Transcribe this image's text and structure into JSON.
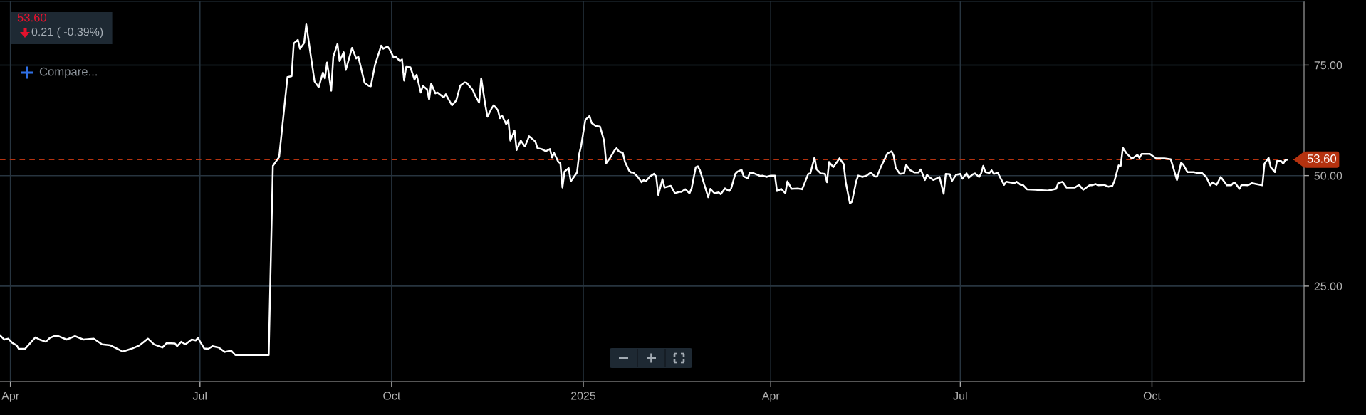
{
  "chart_data": {
    "type": "line",
    "color": "#ffffff",
    "grid": true,
    "xlim": [
      "2024-03-27",
      "2025-12-13"
    ],
    "ylim": [
      3.4,
      89.4
    ],
    "xticks": [
      {
        "value": "2024-04-01",
        "label": "Apr"
      },
      {
        "value": "2024-07-01",
        "label": "Jul"
      },
      {
        "value": "2024-10-01",
        "label": "Oct"
      },
      {
        "value": "2025-01-01",
        "label": "2025"
      },
      {
        "value": "2025-04-01",
        "label": "Apr"
      },
      {
        "value": "2025-07-01",
        "label": "Jul"
      },
      {
        "value": "2025-10-01",
        "label": "Oct"
      }
    ],
    "yticks": [
      {
        "value": 25,
        "label": "25.00"
      },
      {
        "value": 50,
        "label": "50.00"
      },
      {
        "value": 75,
        "label": "75.00"
      }
    ],
    "ref_lines": [
      {
        "axis": "y",
        "value": 53.6,
        "label": "53.60",
        "color": "#b5320f",
        "line_style": "dashed"
      }
    ],
    "annotations": [
      "53.60",
      "0.21 ( -0.39%)",
      "Compare..."
    ],
    "x": [
      "2024-03-27",
      "2024-03-29",
      "2024-03-31",
      "2024-04-02",
      "2024-04-04",
      "2024-04-05",
      "2024-04-08",
      "2024-04-13",
      "2024-04-15",
      "2024-04-18",
      "2024-04-20",
      "2024-04-22",
      "2024-04-24",
      "2024-04-28",
      "2024-05-02",
      "2024-05-06",
      "2024-05-11",
      "2024-05-15",
      "2024-05-19",
      "2024-05-25",
      "2024-05-29",
      "2024-06-02",
      "2024-06-06",
      "2024-06-09",
      "2024-06-13",
      "2024-06-15",
      "2024-06-19",
      "2024-06-20",
      "2024-06-22",
      "2024-06-24",
      "2024-06-27",
      "2024-06-29",
      "2024-06-30",
      "2024-07-03",
      "2024-07-05",
      "2024-07-07",
      "2024-07-10",
      "2024-07-13",
      "2024-07-16",
      "2024-07-18",
      "2024-08-03",
      "2024-08-05",
      "2024-08-08",
      "2024-08-12",
      "2024-08-14",
      "2024-08-15",
      "2024-08-17",
      "2024-08-18",
      "2024-08-20",
      "2024-08-21",
      "2024-08-25",
      "2024-08-27",
      "2024-08-29",
      "2024-08-30",
      "2024-08-31",
      "2024-09-02",
      "2024-09-03",
      "2024-09-05",
      "2024-09-06",
      "2024-09-08",
      "2024-09-09",
      "2024-09-12",
      "2024-09-14",
      "2024-09-15",
      "2024-09-18",
      "2024-09-20",
      "2024-09-21",
      "2024-09-23",
      "2024-09-26",
      "2024-09-27",
      "2024-09-29",
      "2024-09-30",
      "2024-10-02",
      "2024-10-03",
      "2024-10-05",
      "2024-10-06",
      "2024-10-07",
      "2024-10-08",
      "2024-10-10",
      "2024-10-12",
      "2024-10-13",
      "2024-10-15",
      "2024-10-16",
      "2024-10-18",
      "2024-10-19",
      "2024-10-20",
      "2024-10-22",
      "2024-10-23",
      "2024-10-26",
      "2024-10-27",
      "2024-10-29",
      "2024-10-30",
      "2024-11-01",
      "2024-11-03",
      "2024-11-05",
      "2024-11-06",
      "2024-11-08",
      "2024-11-09",
      "2024-11-10",
      "2024-11-12",
      "2024-11-13",
      "2024-11-15",
      "2024-11-16",
      "2024-11-18",
      "2024-11-19",
      "2024-11-21",
      "2024-11-22",
      "2024-11-23",
      "2024-11-25",
      "2024-11-26",
      "2024-11-27",
      "2024-11-29",
      "2024-11-30",
      "2024-12-02",
      "2024-12-04",
      "2024-12-06",
      "2024-12-09",
      "2024-12-10",
      "2024-12-12",
      "2024-12-14",
      "2024-12-16",
      "2024-12-17",
      "2024-12-18",
      "2024-12-20",
      "2024-12-21",
      "2024-12-22",
      "2024-12-23",
      "2024-12-25",
      "2024-12-26",
      "2024-12-29",
      "2024-12-30",
      "2024-12-31",
      "2025-01-02",
      "2025-01-04",
      "2025-01-05",
      "2025-01-07",
      "2025-01-09",
      "2025-01-11",
      "2025-01-12",
      "2025-01-14",
      "2025-01-16",
      "2025-01-17",
      "2025-01-18",
      "2025-01-20",
      "2025-01-21",
      "2025-01-23",
      "2025-01-24",
      "2025-01-25",
      "2025-01-27",
      "2025-01-29",
      "2025-01-30",
      "2025-01-31",
      "2025-02-02",
      "2025-02-04",
      "2025-02-05",
      "2025-02-06",
      "2025-02-08",
      "2025-02-09",
      "2025-02-12",
      "2025-02-14",
      "2025-02-16",
      "2025-02-17",
      "2025-02-19",
      "2025-02-21",
      "2025-02-22",
      "2025-02-24",
      "2025-02-25",
      "2025-02-26",
      "2025-03-02",
      "2025-03-03",
      "2025-03-05",
      "2025-03-07",
      "2025-03-08",
      "2025-03-10",
      "2025-03-12",
      "2025-03-13",
      "2025-03-15",
      "2025-03-16",
      "2025-03-18",
      "2025-03-19",
      "2025-03-21",
      "2025-03-22",
      "2025-03-24",
      "2025-03-27",
      "2025-03-28",
      "2025-03-30",
      "2025-04-01",
      "2025-04-03",
      "2025-04-04",
      "2025-04-06",
      "2025-04-08",
      "2025-04-09",
      "2025-04-11",
      "2025-04-14",
      "2025-04-16",
      "2025-04-17",
      "2025-04-19",
      "2025-04-20",
      "2025-04-22",
      "2025-04-23",
      "2025-04-25",
      "2025-04-27",
      "2025-04-28",
      "2025-04-29",
      "2025-05-01",
      "2025-05-04",
      "2025-05-06",
      "2025-05-07",
      "2025-05-09",
      "2025-05-10",
      "2025-05-12",
      "2025-05-13",
      "2025-05-15",
      "2025-05-17",
      "2025-05-19",
      "2025-05-21",
      "2025-05-22",
      "2025-05-24",
      "2025-05-27",
      "2025-05-29",
      "2025-05-30",
      "2025-05-31",
      "2025-06-02",
      "2025-06-04",
      "2025-06-05",
      "2025-06-07",
      "2025-06-09",
      "2025-06-11",
      "2025-06-12",
      "2025-06-14",
      "2025-06-15",
      "2025-06-16",
      "2025-06-18",
      "2025-06-21",
      "2025-06-23",
      "2025-06-24",
      "2025-06-26",
      "2025-06-27",
      "2025-06-29",
      "2025-07-01",
      "2025-07-02",
      "2025-07-04",
      "2025-07-05",
      "2025-07-07",
      "2025-07-08",
      "2025-07-10",
      "2025-07-11",
      "2025-07-12",
      "2025-07-13",
      "2025-07-15",
      "2025-07-16",
      "2025-07-17",
      "2025-07-19",
      "2025-07-22",
      "2025-07-23",
      "2025-07-27",
      "2025-07-28",
      "2025-07-30",
      "2025-07-31",
      "2025-08-02",
      "2025-08-06",
      "2025-08-09",
      "2025-08-12",
      "2025-08-16",
      "2025-08-17",
      "2025-08-19",
      "2025-08-21",
      "2025-08-25",
      "2025-08-27",
      "2025-08-29",
      "2025-09-01",
      "2025-09-02",
      "2025-09-04",
      "2025-09-05",
      "2025-09-08",
      "2025-09-10",
      "2025-09-12",
      "2025-09-13",
      "2025-09-15",
      "2025-09-16",
      "2025-09-17",
      "2025-09-19",
      "2025-09-21",
      "2025-09-22",
      "2025-09-24",
      "2025-09-25",
      "2025-09-26",
      "2025-09-30",
      "2025-10-03",
      "2025-10-07",
      "2025-10-10",
      "2025-10-13",
      "2025-10-15",
      "2025-10-16",
      "2025-10-18",
      "2025-10-21",
      "2025-10-23",
      "2025-10-25",
      "2025-10-27",
      "2025-10-29",
      "2025-10-30",
      "2025-11-01",
      "2025-11-03",
      "2025-11-06",
      "2025-11-08",
      "2025-11-09",
      "2025-11-10",
      "2025-11-12",
      "2025-11-13",
      "2025-11-16",
      "2025-11-18",
      "2025-11-20",
      "2025-11-23",
      "2025-11-24",
      "2025-11-26",
      "2025-11-27",
      "2025-11-29",
      "2025-11-30",
      "2025-12-02",
      "2025-12-03",
      "2025-12-04",
      "2025-12-05"
    ],
    "values": [
      13.9,
      12.9,
      13.1,
      12.1,
      11.6,
      10.8,
      10.8,
      13.4,
      12.9,
      12.4,
      13.3,
      13.7,
      13.7,
      12.9,
      13.7,
      12.9,
      13.1,
      11.8,
      11.6,
      10.2,
      10.8,
      11.6,
      13.1,
      11.8,
      11.1,
      12.1,
      12.0,
      11.4,
      12.4,
      11.8,
      12.9,
      12.7,
      13.3,
      10.9,
      10.8,
      11.4,
      11.1,
      10.1,
      10.4,
      9.4,
      9.4,
      52.2,
      54.2,
      72.3,
      72.5,
      79.9,
      80.7,
      78.7,
      80.0,
      84.2,
      71.3,
      70.0,
      73.3,
      72.0,
      75.6,
      69.2,
      76.9,
      79.8,
      75.9,
      77.9,
      73.9,
      78.9,
      76.5,
      76.9,
      71.0,
      70.3,
      70.2,
      75.0,
      79.4,
      78.7,
      79.2,
      78.6,
      76.7,
      76.9,
      75.9,
      76.3,
      71.5,
      74.6,
      74.5,
      71.7,
      72.8,
      68.8,
      70.3,
      69.5,
      67.2,
      70.8,
      68.6,
      68.8,
      67.7,
      68.4,
      66.7,
      65.9,
      67.0,
      70.4,
      71.1,
      71.0,
      69.9,
      69.3,
      68.2,
      66.5,
      72.0,
      65.9,
      63.3,
      65.2,
      65.9,
      64.8,
      63.0,
      63.6,
      61.6,
      62.6,
      57.9,
      60.2,
      55.8,
      57.9,
      56.6,
      58.9,
      57.7,
      56.2,
      56.0,
      55.5,
      56.0,
      54.1,
      55.1,
      53.1,
      52.8,
      47.3,
      50.9,
      51.7,
      48.7,
      50.7,
      54.8,
      56.8,
      62.6,
      63.5,
      61.9,
      61.2,
      61.1,
      57.9,
      52.8,
      54.1,
      55.7,
      56.2,
      55.5,
      55.1,
      53.1,
      51.1,
      50.7,
      50.7,
      49.8,
      48.5,
      49.0,
      48.7,
      49.8,
      50.4,
      49.8,
      45.6,
      49.2,
      47.3,
      47.7,
      46.0,
      46.3,
      46.3,
      46.9,
      46.0,
      47.1,
      51.9,
      52.1,
      51.2,
      45.1,
      47.0,
      46.0,
      46.2,
      45.8,
      47.1,
      46.5,
      47.1,
      50.4,
      50.9,
      51.3,
      49.8,
      49.4,
      50.7,
      50.5,
      49.9,
      50.0,
      49.7,
      50.0,
      50.0,
      46.5,
      47.0,
      46.0,
      48.7,
      47.0,
      47.1,
      46.9,
      48.0,
      50.4,
      50.5,
      54.1,
      51.4,
      50.5,
      50.4,
      48.5,
      53.1,
      51.9,
      53.9,
      52.6,
      48.5,
      43.7,
      44.1,
      48.7,
      50.0,
      49.7,
      50.0,
      50.7,
      49.8,
      49.8,
      52.1,
      55.0,
      55.5,
      54.5,
      51.7,
      50.4,
      50.5,
      52.4,
      51.2,
      50.7,
      50.7,
      51.4,
      49.0,
      50.2,
      49.7,
      49.0,
      49.7,
      45.9,
      50.4,
      50.3,
      48.8,
      50.2,
      50.4,
      49.3,
      50.5,
      49.5,
      50.3,
      50.5,
      49.7,
      50.5,
      52.2,
      50.8,
      50.6,
      51.2,
      50.4,
      50.6,
      47.9,
      48.6,
      48.3,
      48.6,
      47.9,
      47.9,
      46.9,
      46.8,
      46.7,
      46.6,
      47.0,
      48.3,
      48.6,
      47.3,
      47.3,
      47.9,
      46.8,
      47.8,
      47.8,
      48.1,
      47.8,
      47.9,
      47.5,
      47.7,
      48.8,
      52.3,
      52.2,
      56.3,
      54.9,
      54.0,
      54.0,
      54.7,
      54.0,
      54.9,
      54.9,
      53.9,
      53.9,
      53.7,
      49.0,
      52.9,
      52.5,
      50.8,
      50.8,
      50.6,
      50.6,
      49.7,
      47.8,
      48.5,
      47.9,
      49.7,
      47.8,
      47.8,
      48.3,
      48.3,
      47.0,
      47.9,
      47.8,
      48.3,
      48.1,
      47.8,
      52.7,
      54.0,
      51.9,
      50.8,
      53.3,
      53.3,
      52.7,
      53.5,
      53.6
    ]
  }
}
